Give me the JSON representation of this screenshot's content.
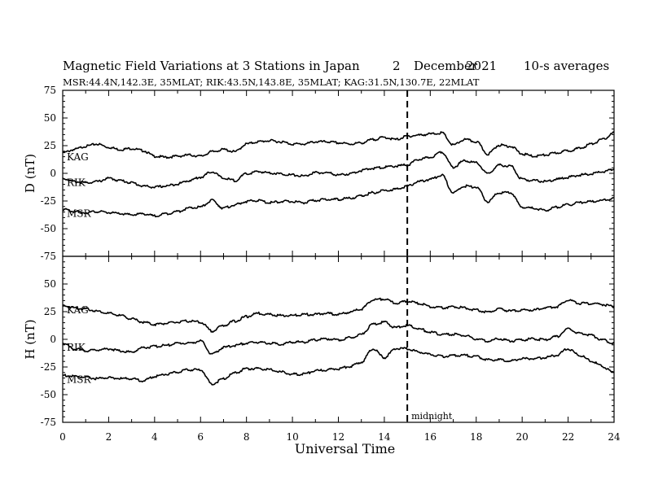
{
  "header": {
    "title": "Magnetic Field Variations at 3 Stations in Japan",
    "day": "2",
    "month": "December",
    "year": "2021",
    "averaging": "10-s averages",
    "stations": "MSR:44.4N,142.3E, 35MLAT;  RIK:43.5N,143.8E, 35MLAT;  KAG:31.5N,130.7E, 22MLAT"
  },
  "chart_data": [
    {
      "type": "line",
      "panel": "D",
      "ylabel": "D (nT)",
      "ylim": [
        -75,
        75
      ],
      "yticks": [
        75,
        50,
        25,
        0,
        -25,
        -50,
        -75
      ],
      "xlim": [
        0,
        24
      ],
      "marker_line_x": 15,
      "series": [
        {
          "name": "KAG",
          "x": [
            0,
            0.5,
            1,
            1.5,
            2,
            2.5,
            3,
            3.5,
            4,
            4.5,
            5,
            5.5,
            6,
            6.5,
            7,
            7.5,
            8,
            8.5,
            9,
            9.5,
            10,
            10.5,
            11,
            11.5,
            12,
            12.5,
            13,
            13.5,
            14,
            14.5,
            15,
            15.5,
            16,
            16.5,
            17,
            17.5,
            18,
            18.5,
            19,
            19.5,
            20,
            20.5,
            21,
            21.5,
            22,
            22.5,
            23,
            23.5,
            24
          ],
          "values": [
            19,
            22,
            25,
            27,
            24,
            22,
            23,
            21,
            16,
            15,
            16,
            17,
            16,
            20,
            22,
            20,
            27,
            29,
            30,
            29,
            27,
            27,
            29,
            29,
            28,
            27,
            28,
            31,
            33,
            31,
            34,
            35,
            36,
            37,
            26,
            31,
            29,
            18,
            26,
            25,
            18,
            16,
            17,
            19,
            21,
            23,
            27,
            31,
            37
          ]
        },
        {
          "name": "RIK",
          "x": [
            0,
            0.5,
            1,
            1.5,
            2,
            2.5,
            3,
            3.5,
            4,
            4.5,
            5,
            5.5,
            6,
            6.5,
            7,
            7.5,
            8,
            8.5,
            9,
            9.5,
            10,
            10.5,
            11,
            11.5,
            12,
            12.5,
            13,
            13.5,
            14,
            14.5,
            15,
            15.5,
            16,
            16.5,
            17,
            17.5,
            18,
            18.5,
            19,
            19.5,
            20,
            20.5,
            21,
            21.5,
            22,
            22.5,
            23,
            23.5,
            24
          ],
          "values": [
            -4,
            -7,
            -8,
            -7,
            -4,
            -6,
            -8,
            -11,
            -12,
            -11,
            -9,
            -6,
            -3,
            2,
            -4,
            -6,
            0,
            2,
            1,
            0,
            -1,
            -2,
            1,
            1,
            -1,
            0,
            3,
            5,
            6,
            7,
            8,
            13,
            15,
            20,
            6,
            12,
            10,
            0,
            8,
            7,
            -5,
            -6,
            -7,
            -5,
            -3,
            -1,
            0,
            2,
            4
          ]
        },
        {
          "name": "MSR",
          "x": [
            0,
            0.5,
            1,
            1.5,
            2,
            2.5,
            3,
            3.5,
            4,
            4.5,
            5,
            5.5,
            6,
            6.5,
            7,
            7.5,
            8,
            8.5,
            9,
            9.5,
            10,
            10.5,
            11,
            11.5,
            12,
            12.5,
            13,
            13.5,
            14,
            14.5,
            15,
            15.5,
            16,
            16.5,
            17,
            17.5,
            18,
            18.5,
            19,
            19.5,
            20,
            20.5,
            21,
            21.5,
            22,
            22.5,
            23,
            23.5,
            24
          ],
          "values": [
            -32,
            -34,
            -35,
            -34,
            -35,
            -36,
            -37,
            -36,
            -38,
            -36,
            -34,
            -31,
            -30,
            -24,
            -31,
            -28,
            -25,
            -24,
            -26,
            -25,
            -25,
            -26,
            -24,
            -23,
            -23,
            -22,
            -20,
            -17,
            -15,
            -14,
            -11,
            -7,
            -5,
            -1,
            -17,
            -11,
            -12,
            -25,
            -17,
            -17,
            -30,
            -31,
            -33,
            -30,
            -28,
            -26,
            -25,
            -24,
            -22
          ]
        }
      ]
    },
    {
      "type": "line",
      "panel": "H",
      "ylabel": "H (nT)",
      "ylim": [
        -75,
        75
      ],
      "yticks": [
        75,
        50,
        25,
        0,
        -25,
        -50,
        -75
      ],
      "xlim": [
        0,
        24
      ],
      "xticks": [
        0,
        2,
        4,
        6,
        8,
        10,
        12,
        14,
        16,
        18,
        20,
        22,
        24
      ],
      "xlabel": "Universal Time",
      "marker_line_x": 15,
      "marker_label": "midnight",
      "series": [
        {
          "name": "KAG",
          "x": [
            0,
            0.5,
            1,
            1.5,
            2,
            2.5,
            3,
            3.5,
            4,
            4.5,
            5,
            5.5,
            6,
            6.5,
            7,
            7.5,
            8,
            8.5,
            9,
            9.5,
            10,
            10.5,
            11,
            11.5,
            12,
            12.5,
            13,
            13.5,
            14,
            14.5,
            15,
            15.5,
            16,
            16.5,
            17,
            17.5,
            18,
            18.5,
            19,
            19.5,
            20,
            20.5,
            21,
            21.5,
            22,
            22.5,
            23,
            23.5,
            24
          ],
          "values": [
            31,
            29,
            28,
            26,
            24,
            22,
            19,
            16,
            14,
            15,
            16,
            17,
            16,
            8,
            13,
            17,
            21,
            24,
            23,
            22,
            22,
            23,
            23,
            24,
            23,
            25,
            28,
            36,
            37,
            33,
            35,
            33,
            30,
            29,
            30,
            29,
            27,
            25,
            28,
            26,
            27,
            27,
            29,
            30,
            36,
            33,
            33,
            32,
            30
          ]
        },
        {
          "name": "RIK",
          "x": [
            0,
            0.5,
            1,
            1.5,
            2,
            2.5,
            3,
            3.5,
            4,
            4.5,
            5,
            5.5,
            6,
            6.5,
            7,
            7.5,
            8,
            8.5,
            9,
            9.5,
            10,
            10.5,
            11,
            11.5,
            12,
            12.5,
            13,
            13.5,
            14,
            14.5,
            15,
            15.5,
            16,
            16.5,
            17,
            17.5,
            18,
            18.5,
            19,
            19.5,
            20,
            20.5,
            21,
            21.5,
            22,
            22.5,
            23,
            23.5,
            24
          ],
          "values": [
            -3,
            -8,
            -10,
            -9,
            -8,
            -10,
            -11,
            -7,
            -6,
            -5,
            -3,
            -3,
            -1,
            -13,
            -7,
            -5,
            -3,
            -2,
            -3,
            -4,
            -2,
            -2,
            0,
            1,
            0,
            2,
            5,
            14,
            16,
            11,
            13,
            10,
            7,
            5,
            5,
            4,
            1,
            -1,
            1,
            -1,
            0,
            1,
            0,
            3,
            10,
            6,
            4,
            0,
            -3
          ]
        },
        {
          "name": "MSR",
          "x": [
            0,
            0.5,
            1,
            1.5,
            2,
            2.5,
            3,
            3.5,
            4,
            4.5,
            5,
            5.5,
            6,
            6.5,
            7,
            7.5,
            8,
            8.5,
            9,
            9.5,
            10,
            10.5,
            11,
            11.5,
            12,
            12.5,
            13,
            13.5,
            14,
            14.5,
            15,
            15.5,
            16,
            16.5,
            17,
            17.5,
            18,
            18.5,
            19,
            19.5,
            20,
            20.5,
            21,
            21.5,
            22,
            22.5,
            23,
            23.5,
            24
          ],
          "values": [
            -32,
            -33,
            -34,
            -35,
            -34,
            -35,
            -35,
            -37,
            -33,
            -31,
            -29,
            -27,
            -27,
            -40,
            -35,
            -30,
            -26,
            -26,
            -27,
            -29,
            -31,
            -31,
            -28,
            -27,
            -26,
            -24,
            -20,
            -8,
            -16,
            -8,
            -8,
            -11,
            -13,
            -15,
            -14,
            -14,
            -15,
            -18,
            -18,
            -19,
            -17,
            -17,
            -16,
            -14,
            -8,
            -14,
            -19,
            -24,
            -30
          ]
        }
      ]
    }
  ]
}
